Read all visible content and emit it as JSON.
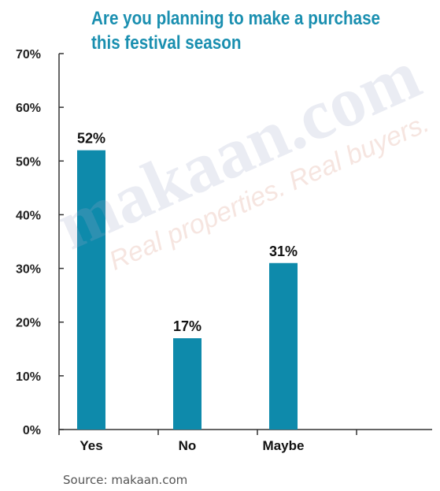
{
  "chart_data": {
    "type": "bar",
    "title": "Are you planning to make a purchase this festival season",
    "categories": [
      "Yes",
      "No",
      "Maybe"
    ],
    "values": [
      52,
      17,
      31
    ],
    "data_labels": [
      "52%",
      "17%",
      "31%"
    ],
    "ylim": [
      0,
      70
    ],
    "yticks": [
      "0%",
      "10%",
      "20%",
      "30%",
      "40%",
      "50%",
      "60%",
      "70%"
    ],
    "xlabel": "",
    "ylabel": "",
    "grid": false,
    "bar_color": "#0e8aab"
  },
  "watermark": {
    "brand": "makaan.com",
    "tagline": "Real properties. Real buyers."
  },
  "source": "Source: makaan.com"
}
